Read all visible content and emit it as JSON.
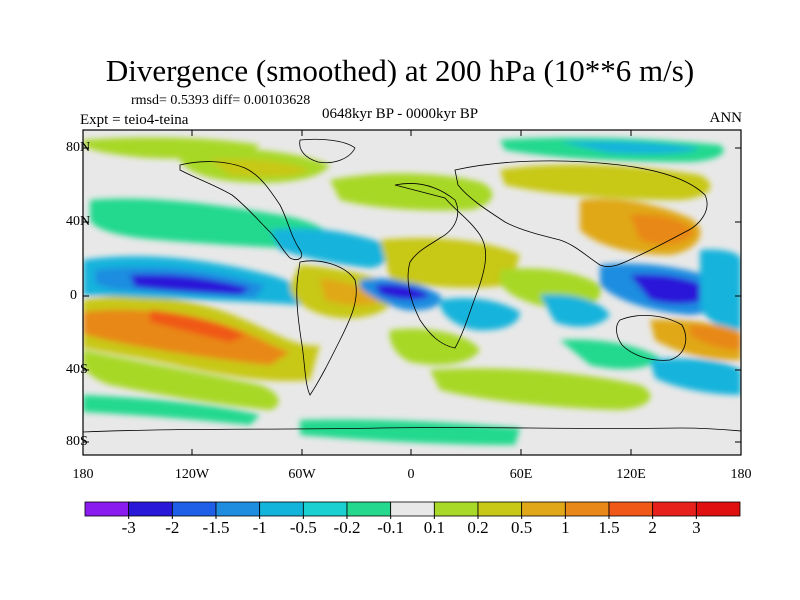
{
  "title": "Divergence (smoothed) at 200 hPa (10**6 m/s)",
  "stats": "rmsd= 0.5393 diff= 0.00103628",
  "experiment": "Expt = teio4-teina",
  "period": "0648kyr BP - 0000kyr BP",
  "season": "ANN",
  "axes": {
    "y_ticks": [
      "80N",
      "40N",
      "0",
      "40S",
      "80S"
    ],
    "x_ticks": [
      "180",
      "120W",
      "60W",
      "0",
      "60E",
      "120E",
      "180"
    ]
  },
  "colorbar": {
    "labels": [
      "-3",
      "-2",
      "-1.5",
      "-1",
      "-0.5",
      "-0.2",
      "-0.1",
      "0.1",
      "0.2",
      "0.5",
      "1",
      "1.5",
      "2",
      "3"
    ],
    "colors": [
      "#8a1cf0",
      "#2a18d8",
      "#1f5ee6",
      "#1e8de0",
      "#12b4dc",
      "#1ad0d0",
      "#24d98e",
      "#e8e8e8",
      "#a8d828",
      "#c8c818",
      "#e0a818",
      "#e88818",
      "#f05818",
      "#e8201c",
      "#e01010"
    ]
  },
  "map_colors": {
    "neutral": "#e8e8e8",
    "conv_weak": "#24d98e",
    "conv_mid": "#12b4dc",
    "conv_strong": "#1e8de0",
    "conv_max": "#2a18d8",
    "div_weak": "#a8d828",
    "div_mid": "#c8c818",
    "div_strong": "#e0a818",
    "div_max": "#e88818",
    "div_peak": "#f05818"
  }
}
